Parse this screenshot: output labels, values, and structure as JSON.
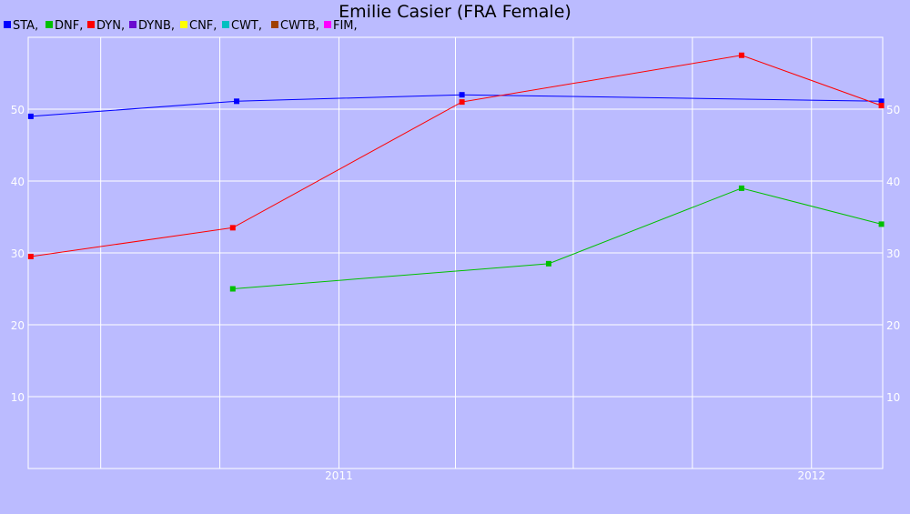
{
  "chart_data": {
    "type": "line",
    "title": "Emilie Casier (FRA Female)",
    "xlabel": "",
    "ylabel": "",
    "legend": [
      {
        "label": "STA,",
        "color": "#0000ff"
      },
      {
        "label": "DNF,",
        "color": "#00c000"
      },
      {
        "label": "DYN,",
        "color": "#ff0000"
      },
      {
        "label": "DYNB,",
        "color": "#6a0ad0"
      },
      {
        "label": "CNF,",
        "color": "#ffff00"
      },
      {
        "label": "CWT,",
        "color": "#00c0c0"
      },
      {
        "label": "CWTB,",
        "color": "#a04000"
      },
      {
        "label": "FIM,",
        "color": "#ff00ff"
      }
    ],
    "legend_position": "top-left",
    "grid": true,
    "ylim": [
      0,
      60
    ],
    "xlim": [
      "2010-05-06",
      "2012-02-25"
    ],
    "y_ticks": [
      10,
      20,
      30,
      40,
      50
    ],
    "y_tick_labels": [
      "10",
      "20",
      "30",
      "40",
      "50"
    ],
    "x_ticks": [
      "2011-01-01",
      "2012-01-01"
    ],
    "x_tick_labels": [
      "2011",
      "2012"
    ],
    "x_grid": [
      "2010-07-01",
      "2010-10-01",
      "2011-01-01",
      "2011-04-01",
      "2011-07-01",
      "2011-10-01",
      "2012-01-01"
    ],
    "series": [
      {
        "name": "STA",
        "color": "#0000ff",
        "points": [
          {
            "x": "2010-05-08",
            "y": 49
          },
          {
            "x": "2010-10-14",
            "y": 51.1
          },
          {
            "x": "2011-04-06",
            "y": 52
          },
          {
            "x": "2012-02-24",
            "y": 51.1
          }
        ]
      },
      {
        "name": "DNF",
        "color": "#00c000",
        "points": [
          {
            "x": "2010-10-11",
            "y": 25
          },
          {
            "x": "2011-06-12",
            "y": 28.5
          },
          {
            "x": "2011-11-08",
            "y": 39
          },
          {
            "x": "2012-02-24",
            "y": 34
          }
        ]
      },
      {
        "name": "DYN",
        "color": "#ff0000",
        "points": [
          {
            "x": "2010-05-08",
            "y": 29.5
          },
          {
            "x": "2010-10-11",
            "y": 33.5
          },
          {
            "x": "2011-04-06",
            "y": 51
          },
          {
            "x": "2011-11-08",
            "y": 57.5
          },
          {
            "x": "2012-02-24",
            "y": 50.5
          }
        ]
      }
    ]
  }
}
